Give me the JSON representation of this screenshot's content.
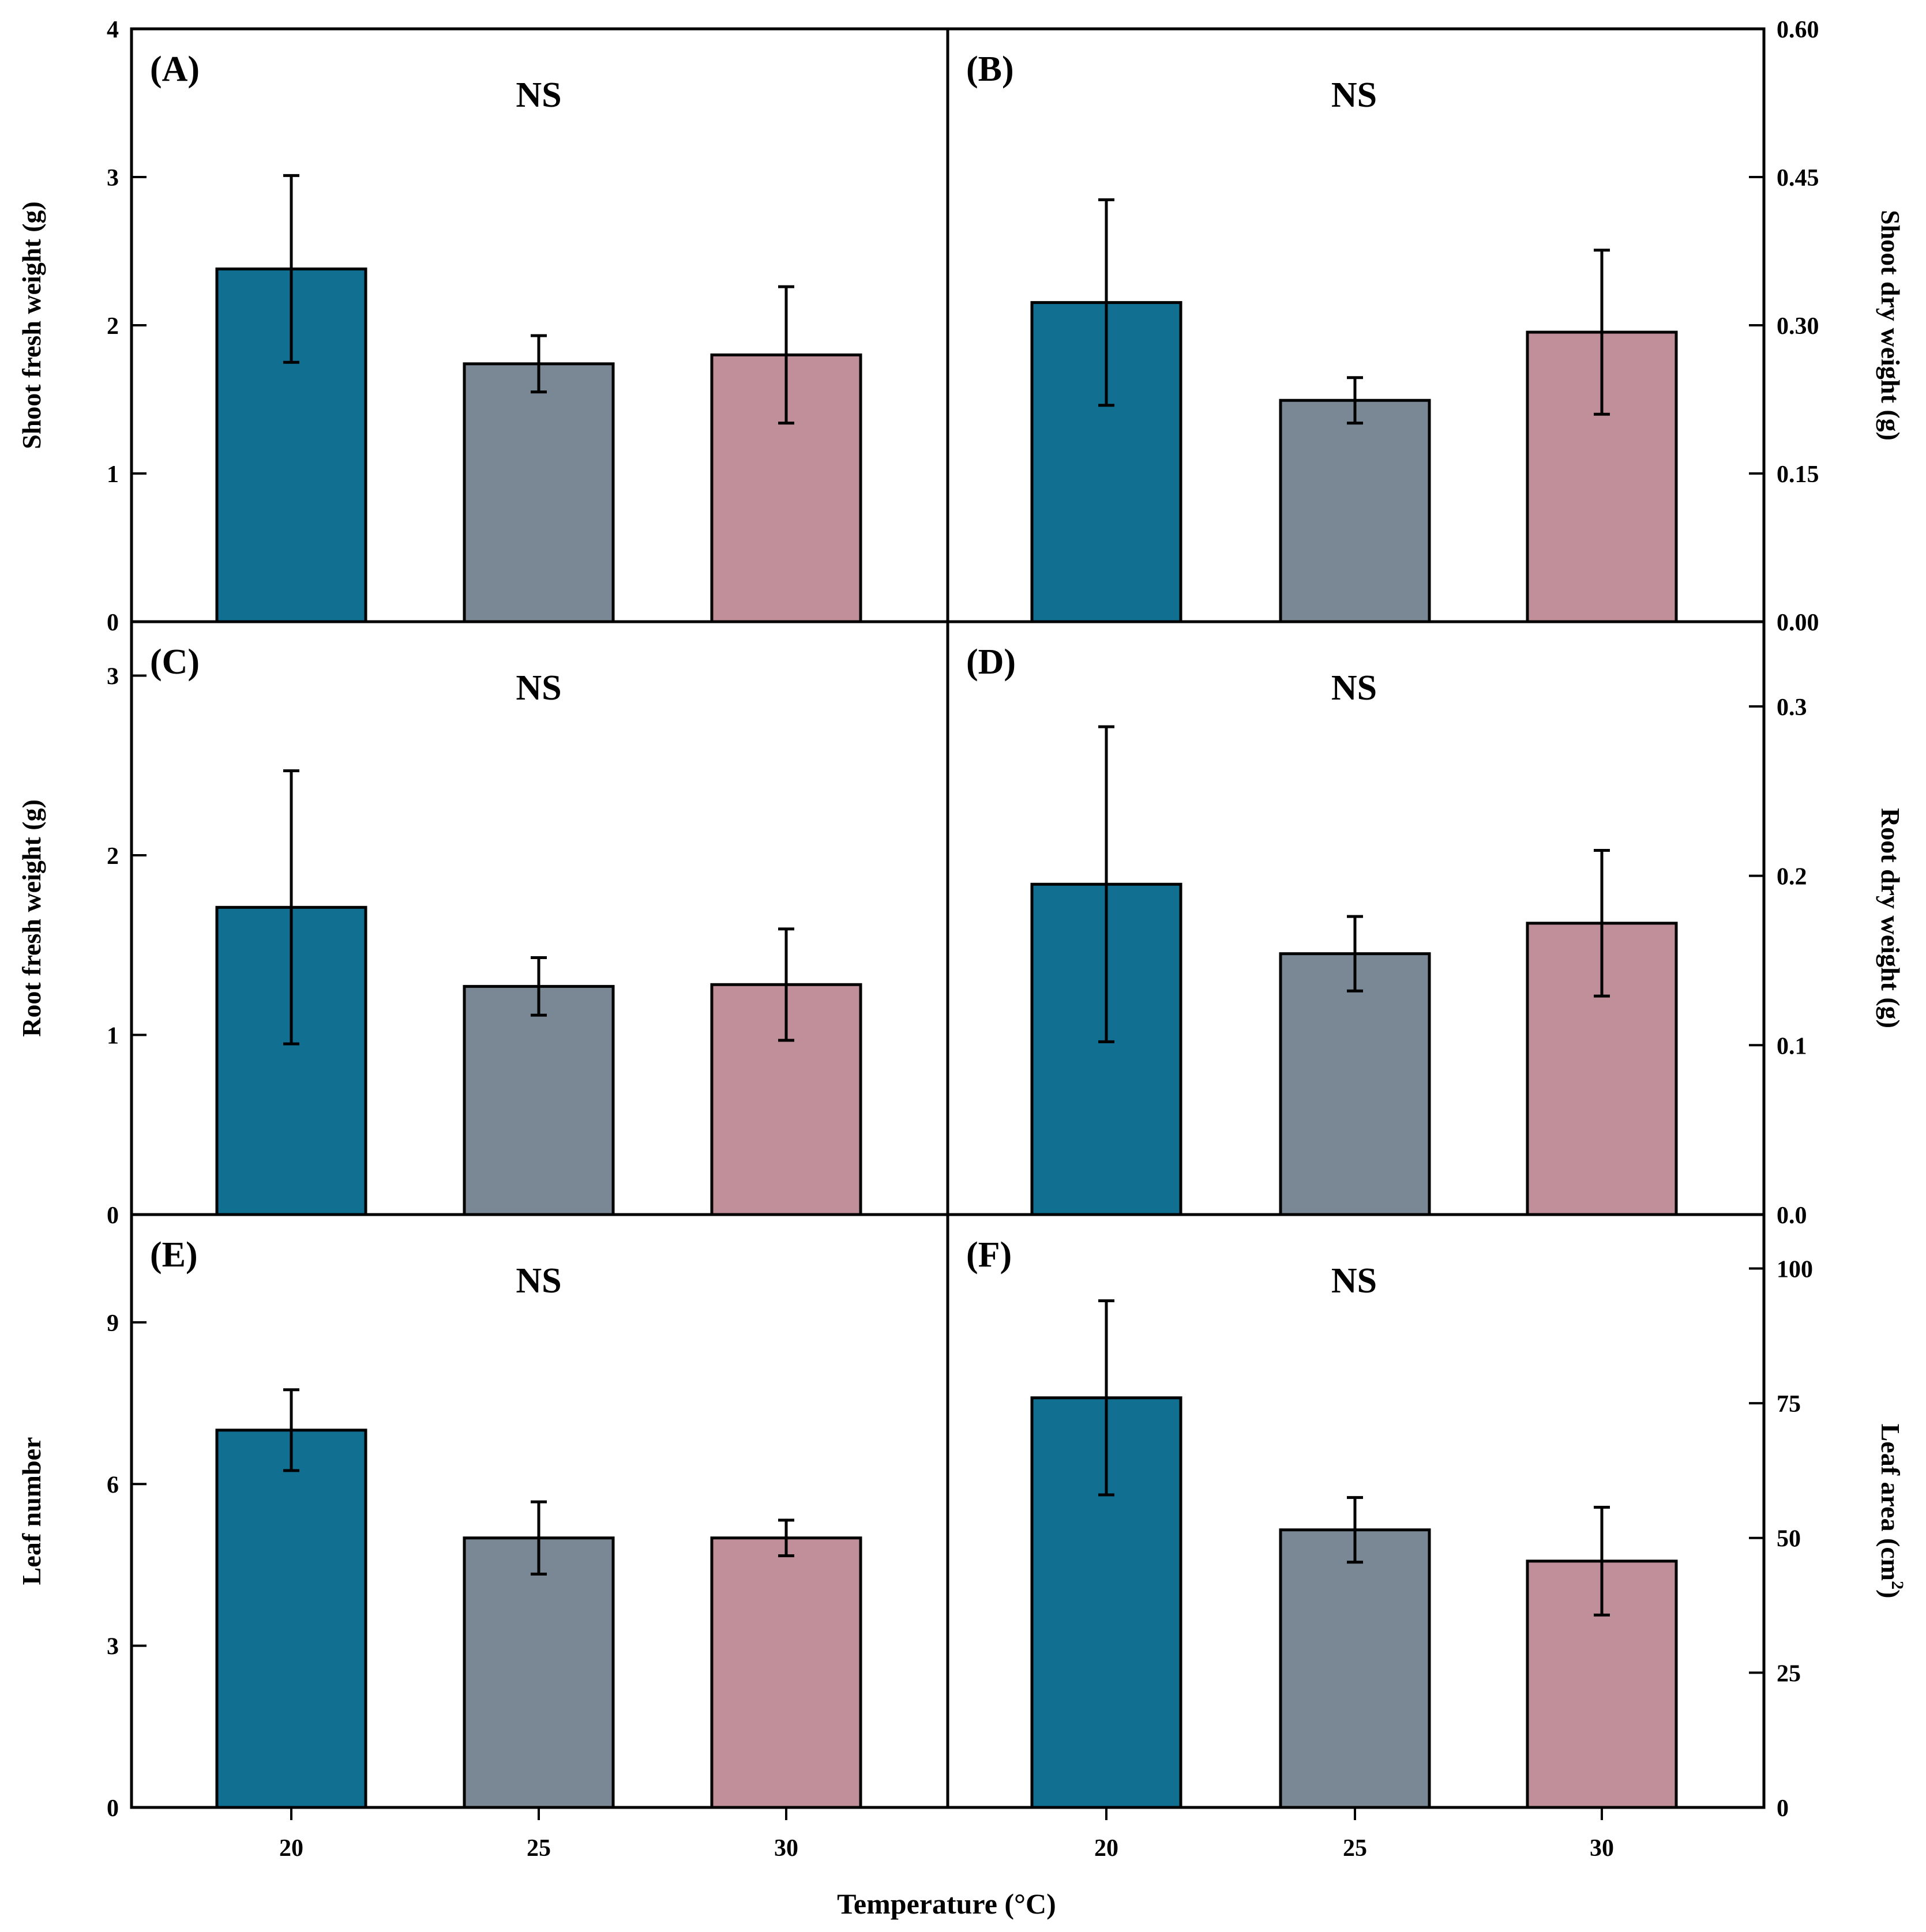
{
  "chart_data": {
    "type": "bar",
    "title": "",
    "xlabel": "Temperature (°C)",
    "categories": [
      "20",
      "25",
      "30"
    ],
    "colors": [
      "#116F92",
      "#798894",
      "#C18F99"
    ],
    "panels": [
      {
        "id": "A",
        "label": "(A)",
        "annotation": "NS",
        "ylabel": "Shoot fresh weight (g)",
        "axis_side": "left",
        "ylim": [
          0,
          4
        ],
        "ticks": [
          {
            "v": 0,
            "t": "0"
          },
          {
            "v": 1,
            "t": "1"
          },
          {
            "v": 2,
            "t": "2"
          },
          {
            "v": 3,
            "t": "3"
          },
          {
            "v": 4,
            "t": "4"
          }
        ],
        "values": [
          2.38,
          1.74,
          1.8
        ],
        "errors": [
          0.63,
          0.19,
          0.46
        ]
      },
      {
        "id": "B",
        "label": "(B)",
        "annotation": "NS",
        "ylabel": "Shoot dry weight (g)",
        "axis_side": "right",
        "ylim": [
          0,
          0.6
        ],
        "ticks": [
          {
            "v": 0,
            "t": "0.00"
          },
          {
            "v": 0.15,
            "t": "0.15"
          },
          {
            "v": 0.3,
            "t": "0.30"
          },
          {
            "v": 0.45,
            "t": "0.45"
          },
          {
            "v": 0.6,
            "t": "0.60"
          }
        ],
        "values": [
          0.323,
          0.224,
          0.293
        ],
        "errors": [
          0.104,
          0.023,
          0.083
        ]
      },
      {
        "id": "C",
        "label": "(C)",
        "annotation": "NS",
        "ylabel": "Root fresh weight (g)",
        "axis_side": "left",
        "ylim": [
          0,
          3.3
        ],
        "ticks": [
          {
            "v": 0,
            "t": "0"
          },
          {
            "v": 1,
            "t": "1"
          },
          {
            "v": 2,
            "t": "2"
          },
          {
            "v": 3,
            "t": "3"
          }
        ],
        "values": [
          1.71,
          1.27,
          1.28
        ],
        "errors": [
          0.76,
          0.16,
          0.31
        ]
      },
      {
        "id": "D",
        "label": "(D)",
        "annotation": "NS",
        "ylabel": "Root dry weight (g)",
        "axis_side": "right",
        "ylim": [
          0,
          0.35
        ],
        "ticks": [
          {
            "v": 0,
            "t": "0.0"
          },
          {
            "v": 0.1,
            "t": "0.1"
          },
          {
            "v": 0.2,
            "t": "0.2"
          },
          {
            "v": 0.3,
            "t": "0.3"
          }
        ],
        "values": [
          0.195,
          0.154,
          0.172
        ],
        "errors": [
          0.093,
          0.022,
          0.043
        ]
      },
      {
        "id": "E",
        "label": "(E)",
        "annotation": "NS",
        "ylabel": "Leaf number",
        "axis_side": "left",
        "ylim": [
          0,
          11
        ],
        "ticks": [
          {
            "v": 0,
            "t": "0"
          },
          {
            "v": 3,
            "t": "3"
          },
          {
            "v": 6,
            "t": "6"
          },
          {
            "v": 9,
            "t": "9"
          }
        ],
        "values": [
          7.0,
          5.0,
          5.0
        ],
        "errors": [
          0.75,
          0.67,
          0.33
        ]
      },
      {
        "id": "F",
        "label": "(F)",
        "annotation": "NS",
        "ylabel": "Leaf area (cm",
        "ylabel_sup": "2",
        "ylabel_end": ")",
        "axis_side": "right",
        "ylim": [
          0,
          110
        ],
        "ticks": [
          {
            "v": 0,
            "t": "0"
          },
          {
            "v": 25,
            "t": "25"
          },
          {
            "v": 50,
            "t": "50"
          },
          {
            "v": 75,
            "t": "75"
          },
          {
            "v": 100,
            "t": "100"
          }
        ],
        "values": [
          76,
          51.5,
          45.7
        ],
        "errors": [
          18,
          6,
          10
        ]
      }
    ]
  }
}
